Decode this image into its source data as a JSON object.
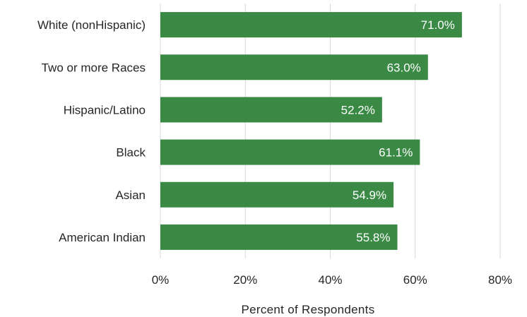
{
  "chart_data": {
    "type": "bar",
    "orientation": "horizontal",
    "categories": [
      "White (nonHispanic)",
      "Two or more Races",
      "Hispanic/Latino",
      "Black",
      "Asian",
      "American Indian"
    ],
    "values": [
      71.0,
      63.0,
      52.2,
      61.1,
      54.9,
      55.8
    ],
    "data_labels": [
      "71.0%",
      "63.0%",
      "52.2%",
      "61.1%",
      "54.9%",
      "55.8%"
    ],
    "xlim": [
      0,
      80
    ],
    "x_ticks": [
      0,
      20,
      40,
      60,
      80
    ],
    "x_tick_labels": [
      "0%",
      "20%",
      "40%",
      "60%",
      "80%"
    ],
    "xlabel": "Percent of Respondents",
    "ylabel": "",
    "title": "",
    "grid": "vertical",
    "legend": "none",
    "colors": {
      "bar": "#3a8a45",
      "grid": "#d9d9d9",
      "text": "#262626",
      "data_label": "#ffffff"
    }
  }
}
